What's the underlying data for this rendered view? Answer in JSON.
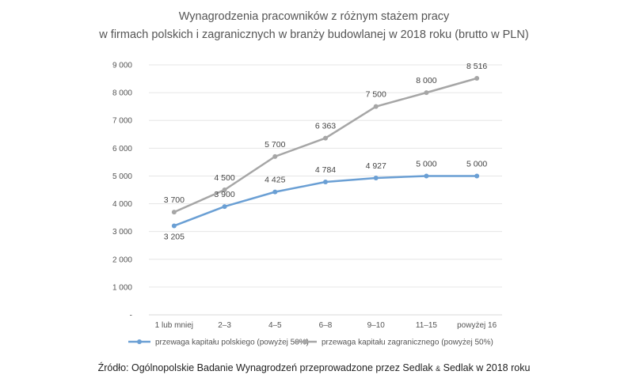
{
  "header": {
    "title_line1": "Wynagrodzenia pracowników z różnym stażem pracy",
    "title_line2": "w firmach polskich i zagranicznych w branży budowlanej w 2018 roku (brutto w PLN)"
  },
  "footer": {
    "source_prefix": "Źródło: Ogólnopolskie Badanie Wynagrodzeń przeprowadzone przez Sedlak ",
    "source_amp": "&",
    "source_suffix": " Sedlak w 2018 roku"
  },
  "chart_data": {
    "type": "line",
    "title": "Wynagrodzenia pracowników z różnym stażem pracy w firmach polskich i zagranicznych w branży budowlanej w 2018 roku (brutto w PLN)",
    "categories": [
      "1 lub mniej",
      "2–3",
      "4–5",
      "6–8",
      "9–10",
      "11–15",
      "powyżej 16"
    ],
    "series": [
      {
        "name": "przewaga kapitału polskiego (powyżej 50%)",
        "color": "#6a9fd4",
        "values": [
          3205,
          3900,
          4425,
          4784,
          4927,
          5000,
          5000
        ],
        "labels": [
          "3 205",
          "3 900",
          "4 425",
          "4 784",
          "4 927",
          "5 000",
          "5 000"
        ]
      },
      {
        "name": "przewaga kapitału zagranicznego (powyżej 50%)",
        "color": "#a6a6a6",
        "values": [
          3700,
          4500,
          5700,
          6363,
          7500,
          8000,
          8516
        ],
        "labels": [
          "3 700",
          "4 500",
          "5 700",
          "6 363",
          "7 500",
          "8 000",
          "8 516"
        ]
      }
    ],
    "ylim": [
      0,
      9000
    ],
    "yticks": [
      0,
      1000,
      2000,
      3000,
      4000,
      5000,
      6000,
      7000,
      8000,
      9000
    ],
    "ytick_labels": [
      "-",
      "1 000",
      "2 000",
      "3 000",
      "4 000",
      "5 000",
      "6 000",
      "7 000",
      "8 000",
      "9 000"
    ],
    "grid": true,
    "legend": "bottom"
  }
}
